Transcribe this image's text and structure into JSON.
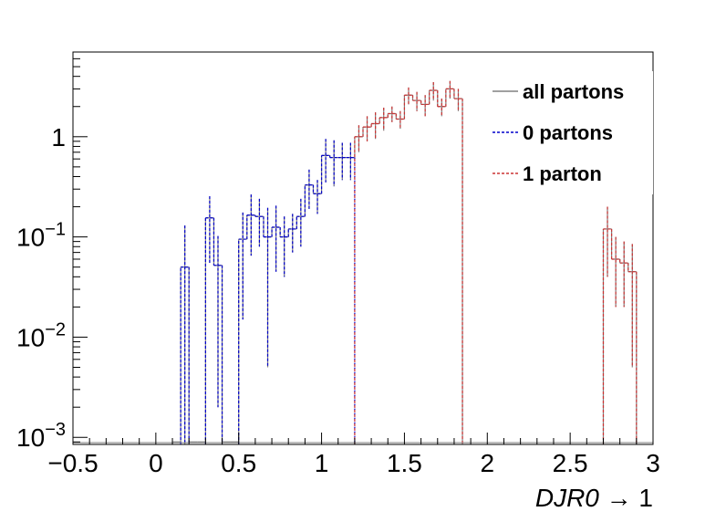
{
  "chart_data": {
    "type": "histogram",
    "title": "",
    "xlabel_var": "DJR0",
    "xlabel_suffix": " → 1",
    "ylabel": "",
    "xlim": [
      -0.5,
      3.0
    ],
    "ylim": [
      0.00085,
      7
    ],
    "log_y": true,
    "grid": false,
    "x_tick_labels": [
      "−0.5",
      "0",
      "0.5",
      "1",
      "1.5",
      "2",
      "2.5",
      "3"
    ],
    "x_ticks": [
      -0.5,
      0,
      0.5,
      1,
      1.5,
      2,
      2.5,
      3
    ],
    "y_ticks": [
      {
        "value": 0.001,
        "base": "10",
        "exp": "−3"
      },
      {
        "value": 0.01,
        "base": "10",
        "exp": "−2"
      },
      {
        "value": 0.1,
        "base": "10",
        "exp": "−1"
      },
      {
        "value": 1,
        "base": "1",
        "exp": ""
      }
    ],
    "legend_position": "top-right",
    "bin_edges_start": 0.1,
    "bin_width": 0.05,
    "colors": {
      "all": "#808080",
      "zero": "#0000cc",
      "one": "#cc3333"
    },
    "series": [
      {
        "name": "all partons",
        "key": "all",
        "style": "solid",
        "bins": [
          [
            0.1,
            0.0009,
            0
          ],
          [
            0.15,
            0.05,
            0.08
          ],
          [
            0.2,
            0.0009,
            0
          ],
          [
            0.25,
            0.0009,
            0
          ],
          [
            0.3,
            0.155,
            0.1
          ],
          [
            0.35,
            0.052,
            0.05
          ],
          [
            0.4,
            0.0009,
            0
          ],
          [
            0.45,
            0.0009,
            0
          ],
          [
            0.5,
            0.095,
            0.08
          ],
          [
            0.55,
            0.165,
            0.1
          ],
          [
            0.6,
            0.16,
            0.08
          ],
          [
            0.65,
            0.1,
            0.095
          ],
          [
            0.7,
            0.125,
            0.08
          ],
          [
            0.75,
            0.1,
            0.06
          ],
          [
            0.8,
            0.12,
            0.05
          ],
          [
            0.85,
            0.16,
            0.08
          ],
          [
            0.9,
            0.33,
            0.14
          ],
          [
            0.95,
            0.27,
            0.1
          ],
          [
            1.0,
            0.65,
            0.3
          ],
          [
            1.05,
            0.62,
            0.3
          ],
          [
            1.1,
            0.62,
            0.25
          ],
          [
            1.15,
            0.62,
            0.25
          ],
          [
            1.2,
            1.0,
            0.3
          ],
          [
            1.25,
            1.25,
            0.35
          ],
          [
            1.3,
            1.35,
            0.4
          ],
          [
            1.35,
            1.55,
            0.4
          ],
          [
            1.4,
            1.7,
            0.3
          ],
          [
            1.45,
            1.5,
            0.3
          ],
          [
            1.5,
            2.6,
            0.5
          ],
          [
            1.55,
            2.3,
            0.5
          ],
          [
            1.6,
            2.1,
            0.5
          ],
          [
            1.65,
            2.9,
            0.6
          ],
          [
            1.7,
            2.0,
            0.4
          ],
          [
            1.75,
            3.0,
            0.6
          ],
          [
            1.8,
            2.4,
            0.6
          ],
          [
            2.7,
            0.12,
            0.08
          ],
          [
            2.75,
            0.06,
            0.04
          ],
          [
            2.8,
            0.055,
            0.035
          ],
          [
            2.85,
            0.045,
            0.04
          ]
        ]
      },
      {
        "name": "0 partons",
        "key": "zero",
        "style": "dashed",
        "bins": [
          [
            0.15,
            0.05,
            0.08
          ],
          [
            0.3,
            0.155,
            0.1
          ],
          [
            0.35,
            0.052,
            0.05
          ],
          [
            0.5,
            0.095,
            0.08
          ],
          [
            0.55,
            0.165,
            0.1
          ],
          [
            0.6,
            0.16,
            0.08
          ],
          [
            0.65,
            0.1,
            0.095
          ],
          [
            0.7,
            0.125,
            0.08
          ],
          [
            0.75,
            0.1,
            0.06
          ],
          [
            0.8,
            0.12,
            0.05
          ],
          [
            0.85,
            0.16,
            0.08
          ],
          [
            0.9,
            0.33,
            0.14
          ],
          [
            0.95,
            0.27,
            0.1
          ],
          [
            1.0,
            0.65,
            0.3
          ],
          [
            1.05,
            0.62,
            0.3
          ],
          [
            1.1,
            0.62,
            0.25
          ],
          [
            1.15,
            0.62,
            0.25
          ]
        ]
      },
      {
        "name": "1 parton",
        "key": "one",
        "style": "dashed",
        "bins": [
          [
            1.2,
            1.0,
            0.3
          ],
          [
            1.25,
            1.25,
            0.35
          ],
          [
            1.3,
            1.35,
            0.4
          ],
          [
            1.35,
            1.55,
            0.4
          ],
          [
            1.4,
            1.7,
            0.3
          ],
          [
            1.45,
            1.5,
            0.3
          ],
          [
            1.5,
            2.6,
            0.5
          ],
          [
            1.55,
            2.3,
            0.5
          ],
          [
            1.6,
            2.1,
            0.5
          ],
          [
            1.65,
            2.9,
            0.6
          ],
          [
            1.7,
            2.0,
            0.4
          ],
          [
            1.75,
            3.0,
            0.6
          ],
          [
            1.8,
            2.4,
            0.6
          ],
          [
            2.7,
            0.12,
            0.08
          ],
          [
            2.75,
            0.06,
            0.04
          ],
          [
            2.8,
            0.055,
            0.035
          ],
          [
            2.85,
            0.045,
            0.04
          ]
        ]
      }
    ]
  },
  "legend": {
    "entries": [
      {
        "key": "all",
        "label": "all partons"
      },
      {
        "key": "zero",
        "label": "0 partons"
      },
      {
        "key": "one",
        "label": "1 parton"
      }
    ]
  }
}
